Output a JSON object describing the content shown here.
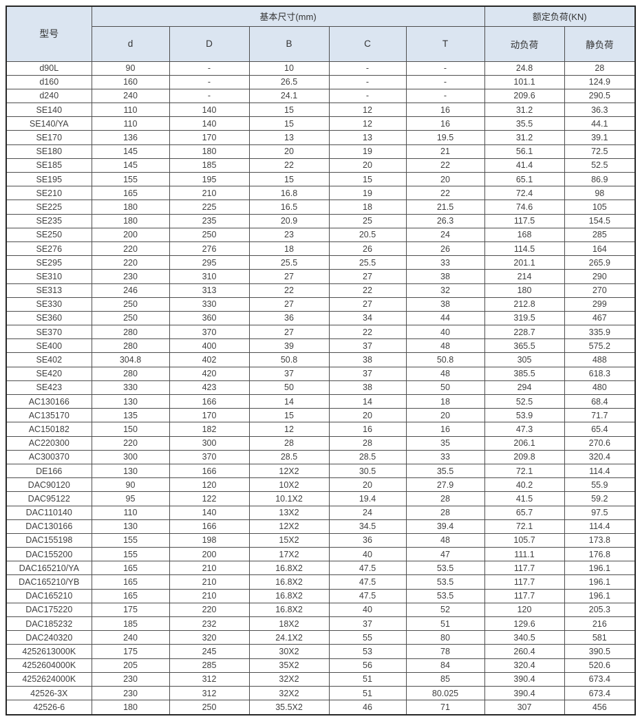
{
  "table": {
    "header": {
      "model_label": "型号",
      "dims_group_label": "基本尺寸(mm)",
      "load_group_label": "额定负荷(KN)",
      "dim_columns": [
        "d",
        "D",
        "B",
        "C",
        "T"
      ],
      "load_columns": [
        "动负荷",
        "静负荷"
      ]
    },
    "rows": [
      [
        "d90L",
        "90",
        "-",
        "10",
        "-",
        "-",
        "24.8",
        "28"
      ],
      [
        "d160",
        "160",
        "-",
        "26.5",
        "-",
        "-",
        "101.1",
        "124.9"
      ],
      [
        "d240",
        "240",
        "-",
        "24.1",
        "-",
        "-",
        "209.6",
        "290.5"
      ],
      [
        "SE140",
        "110",
        "140",
        "15",
        "12",
        "16",
        "31.2",
        "36.3"
      ],
      [
        "SE140/YA",
        "110",
        "140",
        "15",
        "12",
        "16",
        "35.5",
        "44.1"
      ],
      [
        "SE170",
        "136",
        "170",
        "13",
        "13",
        "19.5",
        "31.2",
        "39.1"
      ],
      [
        "SE180",
        "145",
        "180",
        "20",
        "19",
        "21",
        "56.1",
        "72.5"
      ],
      [
        "SE185",
        "145",
        "185",
        "22",
        "20",
        "22",
        "41.4",
        "52.5"
      ],
      [
        "SE195",
        "155",
        "195",
        "15",
        "15",
        "20",
        "65.1",
        "86.9"
      ],
      [
        "SE210",
        "165",
        "210",
        "16.8",
        "19",
        "22",
        "72.4",
        "98"
      ],
      [
        "SE225",
        "180",
        "225",
        "16.5",
        "18",
        "21.5",
        "74.6",
        "105"
      ],
      [
        "SE235",
        "180",
        "235",
        "20.9",
        "25",
        "26.3",
        "117.5",
        "154.5"
      ],
      [
        "SE250",
        "200",
        "250",
        "23",
        "20.5",
        "24",
        "168",
        "285"
      ],
      [
        "SE276",
        "220",
        "276",
        "18",
        "26",
        "26",
        "114.5",
        "164"
      ],
      [
        "SE295",
        "220",
        "295",
        "25.5",
        "25.5",
        "33",
        "201.1",
        "265.9"
      ],
      [
        "SE310",
        "230",
        "310",
        "27",
        "27",
        "38",
        "214",
        "290"
      ],
      [
        "SE313",
        "246",
        "313",
        "22",
        "22",
        "32",
        "180",
        "270"
      ],
      [
        "SE330",
        "250",
        "330",
        "27",
        "27",
        "38",
        "212.8",
        "299"
      ],
      [
        "SE360",
        "250",
        "360",
        "36",
        "34",
        "44",
        "319.5",
        "467"
      ],
      [
        "SE370",
        "280",
        "370",
        "27",
        "22",
        "40",
        "228.7",
        "335.9"
      ],
      [
        "SE400",
        "280",
        "400",
        "39",
        "37",
        "48",
        "365.5",
        "575.2"
      ],
      [
        "SE402",
        "304.8",
        "402",
        "50.8",
        "38",
        "50.8",
        "305",
        "488"
      ],
      [
        "SE420",
        "280",
        "420",
        "37",
        "37",
        "48",
        "385.5",
        "618.3"
      ],
      [
        "SE423",
        "330",
        "423",
        "50",
        "38",
        "50",
        "294",
        "480"
      ],
      [
        "AC130166",
        "130",
        "166",
        "14",
        "14",
        "18",
        "52.5",
        "68.4"
      ],
      [
        "AC135170",
        "135",
        "170",
        "15",
        "20",
        "20",
        "53.9",
        "71.7"
      ],
      [
        "AC150182",
        "150",
        "182",
        "12",
        "16",
        "16",
        "47.3",
        "65.4"
      ],
      [
        "AC220300",
        "220",
        "300",
        "28",
        "28",
        "35",
        "206.1",
        "270.6"
      ],
      [
        "AC300370",
        "300",
        "370",
        "28.5",
        "28.5",
        "33",
        "209.8",
        "320.4"
      ],
      [
        "DE166",
        "130",
        "166",
        "12X2",
        "30.5",
        "35.5",
        "72.1",
        "114.4"
      ],
      [
        "DAC90120",
        "90",
        "120",
        "10X2",
        "20",
        "27.9",
        "40.2",
        "55.9"
      ],
      [
        "DAC95122",
        "95",
        "122",
        "10.1X2",
        "19.4",
        "28",
        "41.5",
        "59.2"
      ],
      [
        "DAC110140",
        "110",
        "140",
        "13X2",
        "24",
        "28",
        "65.7",
        "97.5"
      ],
      [
        "DAC130166",
        "130",
        "166",
        "12X2",
        "34.5",
        "39.4",
        "72.1",
        "114.4"
      ],
      [
        "DAC155198",
        "155",
        "198",
        "15X2",
        "36",
        "48",
        "105.7",
        "173.8"
      ],
      [
        "DAC155200",
        "155",
        "200",
        "17X2",
        "40",
        "47",
        "111.1",
        "176.8"
      ],
      [
        "DAC165210/YA",
        "165",
        "210",
        "16.8X2",
        "47.5",
        "53.5",
        "117.7",
        "196.1"
      ],
      [
        "DAC165210/YB",
        "165",
        "210",
        "16.8X2",
        "47.5",
        "53.5",
        "117.7",
        "196.1"
      ],
      [
        "DAC165210",
        "165",
        "210",
        "16.8X2",
        "47.5",
        "53.5",
        "117.7",
        "196.1"
      ],
      [
        "DAC175220",
        "175",
        "220",
        "16.8X2",
        "40",
        "52",
        "120",
        "205.3"
      ],
      [
        "DAC185232",
        "185",
        "232",
        "18X2",
        "37",
        "51",
        "129.6",
        "216"
      ],
      [
        "DAC240320",
        "240",
        "320",
        "24.1X2",
        "55",
        "80",
        "340.5",
        "581"
      ],
      [
        "4252613000K",
        "175",
        "245",
        "30X2",
        "53",
        "78",
        "260.4",
        "390.5"
      ],
      [
        "4252604000K",
        "205",
        "285",
        "35X2",
        "56",
        "84",
        "320.4",
        "520.6"
      ],
      [
        "4252624000K",
        "230",
        "312",
        "32X2",
        "51",
        "85",
        "390.4",
        "673.4"
      ],
      [
        "42526-3X",
        "230",
        "312",
        "32X2",
        "51",
        "80.025",
        "390.4",
        "673.4"
      ],
      [
        "42526-6",
        "180",
        "250",
        "35.5X2",
        "46",
        "71",
        "307",
        "456"
      ]
    ]
  },
  "colors": {
    "header_bg": "#dbe5f1",
    "border": "#4d4d4d",
    "text": "#3f3f3f"
  }
}
